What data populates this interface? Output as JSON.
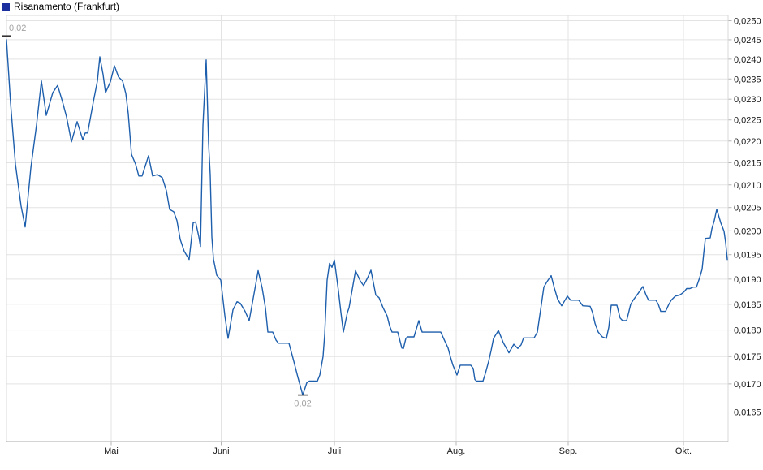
{
  "legend": {
    "title": "Risanamento (Frankfurt)",
    "swatch_color": "#1c2f9e"
  },
  "chart_data": {
    "type": "line",
    "title": "Risanamento (Frankfurt)",
    "line_color": "#1e5fad",
    "grid_color": "#e3e3e3",
    "frame_color": "#d9d9d9",
    "axis_color": "#a8a8a8",
    "scale": "log",
    "legend_position": "top-left",
    "grid": true,
    "y_axis": {
      "side": "right",
      "decimal_separator": ",",
      "tick_labels": [
        "0,0250",
        "0,0245",
        "0,0240",
        "0,0235",
        "0,0230",
        "0,0225",
        "0,0220",
        "0,0215",
        "0,0210",
        "0,0205",
        "0,0200",
        "0,0195",
        "0,0190",
        "0,0185",
        "0,0180",
        "0,0175",
        "0,0170",
        "0,0165"
      ],
      "tick_values": [
        0.025,
        0.0245,
        0.024,
        0.0235,
        0.023,
        0.0225,
        0.022,
        0.0215,
        0.021,
        0.0205,
        0.02,
        0.0195,
        0.019,
        0.0185,
        0.018,
        0.0175,
        0.017,
        0.0165
      ],
      "range": [
        0.016,
        0.0251
      ]
    },
    "x_axis": {
      "tick_labels": [
        "Mai",
        "Juni",
        "Juli",
        "Aug.",
        "Sep.",
        "Okt."
      ]
    },
    "annotations": [
      {
        "text": "0,02",
        "type": "high-marker",
        "x": 8,
        "value": 0.0246,
        "label_position": "above-right"
      },
      {
        "text": "0,02",
        "type": "low-marker",
        "x": 373,
        "value": 0.0168,
        "label_position": "below-center"
      }
    ],
    "series": [
      {
        "name": "Risanamento (Frankfurt)",
        "points": [
          [
            8,
            0.0245
          ],
          [
            13,
            0.02291
          ],
          [
            19,
            0.02147
          ],
          [
            26,
            0.02053
          ],
          [
            31,
            0.02008
          ],
          [
            38,
            0.02138
          ],
          [
            45,
            0.02238
          ],
          [
            51,
            0.02345
          ],
          [
            57,
            0.02261
          ],
          [
            65,
            0.02316
          ],
          [
            71,
            0.02334
          ],
          [
            77,
            0.02294
          ],
          [
            82,
            0.02257
          ],
          [
            85,
            0.02228
          ],
          [
            88,
            0.02198
          ],
          [
            95,
            0.02246
          ],
          [
            102,
            0.02203
          ],
          [
            105,
            0.02219
          ],
          [
            108,
            0.02219
          ],
          [
            115,
            0.02294
          ],
          [
            120,
            0.02345
          ],
          [
            123,
            0.02406
          ],
          [
            127,
            0.02361
          ],
          [
            130,
            0.02316
          ],
          [
            136,
            0.02343
          ],
          [
            141,
            0.02383
          ],
          [
            146,
            0.02355
          ],
          [
            151,
            0.02345
          ],
          [
            155,
            0.02314
          ],
          [
            158,
            0.02265
          ],
          [
            162,
            0.02169
          ],
          [
            167,
            0.02147
          ],
          [
            171,
            0.0212
          ],
          [
            175,
            0.0212
          ],
          [
            183,
            0.02166
          ],
          [
            188,
            0.0212
          ],
          [
            194,
            0.02123
          ],
          [
            200,
            0.02116
          ],
          [
            205,
            0.02087
          ],
          [
            209,
            0.02046
          ],
          [
            214,
            0.02041
          ],
          [
            218,
            0.02022
          ],
          [
            222,
            0.01982
          ],
          [
            227,
            0.01957
          ],
          [
            233,
            0.0194
          ],
          [
            238,
            0.02017
          ],
          [
            241,
            0.02019
          ],
          [
            245,
            0.01987
          ],
          [
            247,
            0.01967
          ],
          [
            250,
            0.02236
          ],
          [
            254,
            0.02398
          ],
          [
            257,
            0.02194
          ],
          [
            259,
            0.02123
          ],
          [
            261,
            0.01987
          ],
          [
            263,
            0.01941
          ],
          [
            267,
            0.01908
          ],
          [
            272,
            0.01898
          ],
          [
            277,
            0.01828
          ],
          [
            281,
            0.01784
          ],
          [
            287,
            0.01839
          ],
          [
            292,
            0.01855
          ],
          [
            296,
            0.01852
          ],
          [
            302,
            0.01836
          ],
          [
            307,
            0.01818
          ],
          [
            313,
            0.01871
          ],
          [
            318,
            0.01917
          ],
          [
            323,
            0.01882
          ],
          [
            327,
            0.01843
          ],
          [
            330,
            0.01796
          ],
          [
            336,
            0.01796
          ],
          [
            340,
            0.01781
          ],
          [
            343,
            0.01775
          ],
          [
            356,
            0.01775
          ],
          [
            362,
            0.01741
          ],
          [
            367,
            0.01712
          ],
          [
            373,
            0.0168
          ],
          [
            378,
            0.01702
          ],
          [
            381,
            0.01705
          ],
          [
            391,
            0.01705
          ],
          [
            394,
            0.01716
          ],
          [
            398,
            0.0175
          ],
          [
            400,
            0.01791
          ],
          [
            403,
            0.01898
          ],
          [
            406,
            0.01932
          ],
          [
            409,
            0.01924
          ],
          [
            412,
            0.01939
          ],
          [
            417,
            0.01876
          ],
          [
            420,
            0.01834
          ],
          [
            423,
            0.01796
          ],
          [
            428,
            0.01834
          ],
          [
            430,
            0.01843
          ],
          [
            438,
            0.01917
          ],
          [
            444,
            0.01896
          ],
          [
            448,
            0.01887
          ],
          [
            453,
            0.01903
          ],
          [
            457,
            0.01918
          ],
          [
            463,
            0.01868
          ],
          [
            467,
            0.01863
          ],
          [
            472,
            0.01843
          ],
          [
            477,
            0.01827
          ],
          [
            480,
            0.01808
          ],
          [
            483,
            0.01796
          ],
          [
            490,
            0.01796
          ],
          [
            495,
            0.01766
          ],
          [
            497,
            0.01765
          ],
          [
            500,
            0.01784
          ],
          [
            502,
            0.01787
          ],
          [
            510,
            0.01787
          ],
          [
            516,
            0.01818
          ],
          [
            520,
            0.01796
          ],
          [
            543,
            0.01796
          ],
          [
            548,
            0.01779
          ],
          [
            552,
            0.01766
          ],
          [
            555,
            0.01749
          ],
          [
            558,
            0.01734
          ],
          [
            563,
            0.01716
          ],
          [
            567,
            0.01734
          ],
          [
            580,
            0.01734
          ],
          [
            583,
            0.01728
          ],
          [
            585,
            0.01708
          ],
          [
            587,
            0.01705
          ],
          [
            595,
            0.01705
          ],
          [
            598,
            0.01719
          ],
          [
            602,
            0.01741
          ],
          [
            605,
            0.01761
          ],
          [
            608,
            0.01784
          ],
          [
            614,
            0.01799
          ],
          [
            618,
            0.01784
          ],
          [
            620,
            0.01776
          ],
          [
            627,
            0.01757
          ],
          [
            633,
            0.01773
          ],
          [
            638,
            0.01765
          ],
          [
            642,
            0.01772
          ],
          [
            645,
            0.01785
          ],
          [
            658,
            0.01785
          ],
          [
            662,
            0.01796
          ],
          [
            667,
            0.0185
          ],
          [
            670,
            0.01884
          ],
          [
            674,
            0.01895
          ],
          [
            679,
            0.01907
          ],
          [
            683,
            0.01882
          ],
          [
            687,
            0.0186
          ],
          [
            692,
            0.01847
          ],
          [
            699,
            0.01866
          ],
          [
            703,
            0.01858
          ],
          [
            713,
            0.01858
          ],
          [
            718,
            0.01847
          ],
          [
            727,
            0.01846
          ],
          [
            730,
            0.01834
          ],
          [
            733,
            0.01813
          ],
          [
            737,
            0.01796
          ],
          [
            742,
            0.01787
          ],
          [
            747,
            0.01784
          ],
          [
            750,
            0.01805
          ],
          [
            753,
            0.01848
          ],
          [
            760,
            0.01848
          ],
          [
            764,
            0.01823
          ],
          [
            767,
            0.01818
          ],
          [
            772,
            0.01818
          ],
          [
            777,
            0.0185
          ],
          [
            780,
            0.01858
          ],
          [
            786,
            0.01871
          ],
          [
            792,
            0.01885
          ],
          [
            796,
            0.01868
          ],
          [
            799,
            0.01858
          ],
          [
            808,
            0.01858
          ],
          [
            811,
            0.0185
          ],
          [
            814,
            0.01836
          ],
          [
            820,
            0.01836
          ],
          [
            824,
            0.0185
          ],
          [
            827,
            0.01858
          ],
          [
            832,
            0.01866
          ],
          [
            837,
            0.01868
          ],
          [
            840,
            0.01871
          ],
          [
            843,
            0.01875
          ],
          [
            846,
            0.01881
          ],
          [
            850,
            0.01881
          ],
          [
            854,
            0.01884
          ],
          [
            858,
            0.01884
          ],
          [
            862,
            0.01903
          ],
          [
            865,
            0.0192
          ],
          [
            867,
            0.01953
          ],
          [
            869,
            0.01984
          ],
          [
            875,
            0.01985
          ],
          [
            877,
            0.02004
          ],
          [
            880,
            0.02022
          ],
          [
            883,
            0.02046
          ],
          [
            888,
            0.02017
          ],
          [
            892,
            0.01999
          ],
          [
            894,
            0.01975
          ],
          [
            896,
            0.0194
          ]
        ]
      }
    ]
  }
}
